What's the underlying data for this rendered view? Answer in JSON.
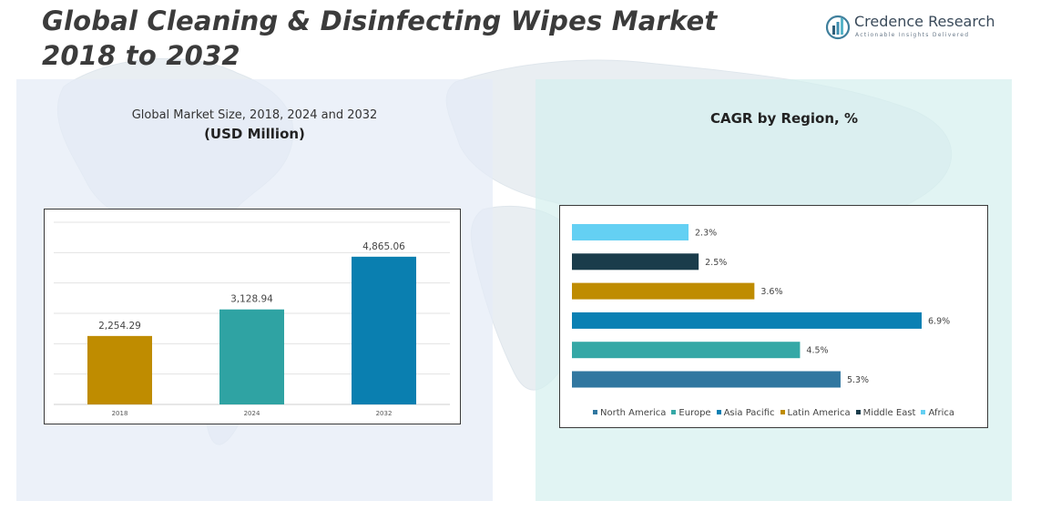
{
  "header": {
    "title_line1": "Global Cleaning & Disinfecting Wipes Market",
    "title_line2": "2018 to 2032"
  },
  "logo": {
    "name": "Credence Research",
    "tagline": "Actionable Insights Delivered",
    "icon": "bar-chart-logo-icon"
  },
  "colors": {
    "gold": "#bf8c00",
    "teal": "#2fa3a3",
    "blue": "#0a7fb0",
    "north_america": "#3177a0",
    "europe": "#35a8a6",
    "asia_pacific": "#0a80b3",
    "latin_america": "#bf8c00",
    "middle_east": "#1a3c4b",
    "africa": "#64d0f3"
  },
  "left_panel": {
    "subtitle": "Global Market Size, 2018, 2024 and 2032",
    "unit": "(USD Million)"
  },
  "right_panel": {
    "title": "CAGR by Region, %"
  },
  "chart_data": [
    {
      "type": "bar",
      "title": "Global Market Size, 2018, 2024 and 2032",
      "ylabel": "(USD Million)",
      "categories": [
        "2018",
        "2024",
        "2032"
      ],
      "values": [
        2254.29,
        3128.94,
        4865.06
      ],
      "labels": [
        "2,254.29",
        "3,128.94",
        "4,865.06"
      ],
      "ylim": [
        0,
        6000
      ],
      "grid": true
    },
    {
      "type": "bar",
      "orientation": "horizontal",
      "title": "CAGR by Region, %",
      "categories": [
        "Africa",
        "Middle East",
        "Latin America",
        "Asia Pacific",
        "Europe",
        "North America"
      ],
      "values": [
        2.3,
        2.5,
        3.6,
        6.9,
        4.5,
        5.3
      ],
      "labels": [
        "2.3%",
        "2.5%",
        "3.6%",
        "6.9%",
        "4.5%",
        "5.3%"
      ],
      "xlim": [
        0,
        7.5
      ],
      "legend": [
        "North America",
        "Europe",
        "Asia Pacific",
        "Latin America",
        "Middle East",
        "Africa"
      ],
      "legend_position": "bottom"
    }
  ]
}
